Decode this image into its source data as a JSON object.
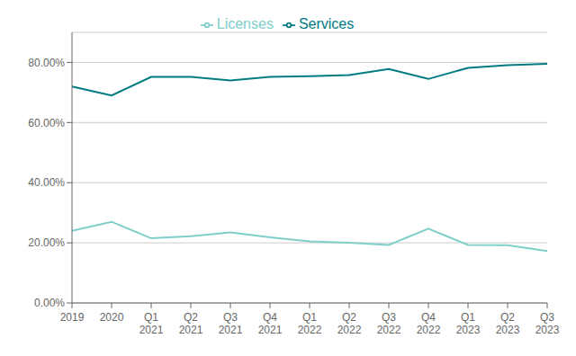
{
  "chart_data": {
    "type": "line",
    "categories": [
      "2019",
      "2020",
      "Q1\n2021",
      "Q2\n2021",
      "Q3\n2021",
      "Q4\n2021",
      "Q1\n2022",
      "Q2\n2022",
      "Q3\n2022",
      "Q4\n2022",
      "Q1\n2023",
      "Q2\n2023",
      "Q3\n2023"
    ],
    "series": [
      {
        "name": "Licenses",
        "color": "#7ECECA",
        "values": [
          0.24,
          0.27,
          0.215,
          0.222,
          0.235,
          0.218,
          0.205,
          0.2,
          0.193,
          0.247,
          0.193,
          0.192,
          0.173
        ]
      },
      {
        "name": "Services",
        "color": "#007B82",
        "values": [
          0.72,
          0.69,
          0.752,
          0.752,
          0.74,
          0.752,
          0.754,
          0.758,
          0.778,
          0.745,
          0.782,
          0.791,
          0.795
        ]
      }
    ],
    "ylim": [
      0.0,
      0.9
    ],
    "yticks": [
      {
        "value": 0.0,
        "label": "0.00%"
      },
      {
        "value": 0.2,
        "label": "20.00%"
      },
      {
        "value": 0.4,
        "label": "40.00%"
      },
      {
        "value": 0.6,
        "label": "60.00%"
      },
      {
        "value": 0.8,
        "label": "80.00%"
      }
    ],
    "grid": true,
    "legend": "top"
  }
}
